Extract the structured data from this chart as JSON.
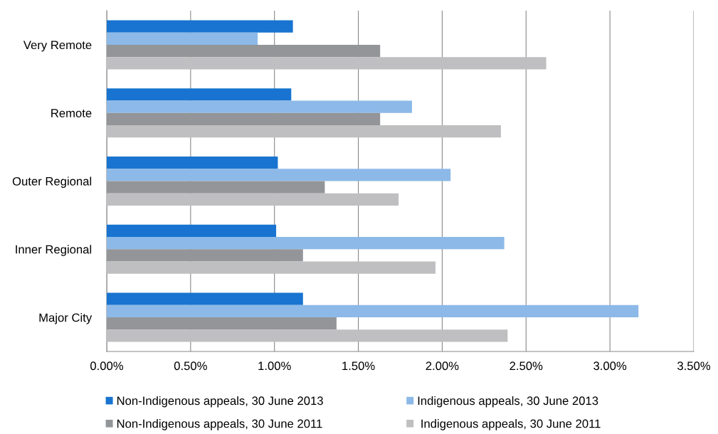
{
  "chart_data": {
    "type": "bar",
    "orientation": "horizontal",
    "categories": [
      "Very Remote",
      "Remote",
      "Outer Regional",
      "Inner Regional",
      "Major City"
    ],
    "series": [
      {
        "name": "Non-Indigenous appeals, 30 June 2013",
        "color": "#1874d0",
        "values": [
          1.11,
          1.1,
          1.02,
          1.01,
          1.17
        ]
      },
      {
        "name": "Indigenous appeals, 30 June 2013",
        "color": "#8db9e8",
        "values": [
          0.9,
          1.82,
          2.05,
          2.37,
          3.17
        ]
      },
      {
        "name": "Non-Indigenous appeals, 30 June 2011",
        "color": "#939598",
        "values": [
          1.63,
          1.63,
          1.3,
          1.17,
          1.37
        ]
      },
      {
        "name": " Indigenous appeals, 30 June 2011",
        "color": "#bfbfc1",
        "values": [
          2.62,
          2.35,
          1.74,
          1.96,
          2.39
        ]
      }
    ],
    "xlim": [
      0,
      3.5
    ],
    "xticks": [
      {
        "value": 0,
        "label": "0.00%"
      },
      {
        "value": 0.5,
        "label": "0.50%"
      },
      {
        "value": 1,
        "label": "1.00%"
      },
      {
        "value": 1.5,
        "label": "1.50%"
      },
      {
        "value": 2,
        "label": "2.00%"
      },
      {
        "value": 2.5,
        "label": "2.50%"
      },
      {
        "value": 3,
        "label": "3.00%"
      },
      {
        "value": 3.5,
        "label": "3.50%"
      }
    ],
    "grid": "x",
    "legend": "bottom"
  }
}
